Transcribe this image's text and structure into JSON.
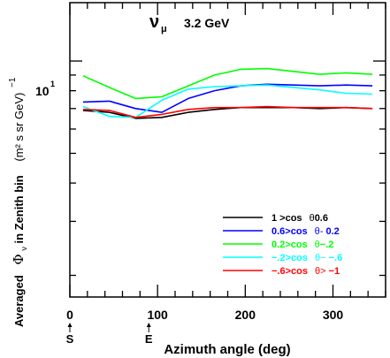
{
  "chart_data": {
    "type": "line",
    "title_symbol": "ν",
    "title_subscript": "μ",
    "title_energy": "3.2 GeV",
    "xlabel": "Azimuth angle (deg)",
    "ylabel_prefix": "Averaged",
    "ylabel_phi": "Φ",
    "ylabel_phi_sub": "ν",
    "ylabel_mid": "in Zenith bin",
    "ylabel_units": "(m² s sr GeV)",
    "ylabel_exp": "−1",
    "xlim": [
      0,
      360
    ],
    "ylim": [
      1.7,
      15.5
    ],
    "yscale": "log",
    "x_ticks": [
      0,
      100,
      200,
      300
    ],
    "y_label_tick": {
      "value": 10,
      "base": "10",
      "exp": "1"
    },
    "direction_markers": [
      {
        "x": 0,
        "label": "S"
      },
      {
        "x": 90,
        "label": "E"
      }
    ],
    "grid": false,
    "legend_placement": "bottom-right",
    "x": [
      15,
      45,
      75,
      105,
      135,
      165,
      195,
      225,
      255,
      285,
      315,
      345
    ],
    "series": [
      {
        "name": "1 >cos θ 0.6",
        "name_main": "1 >cos",
        "name_theta": "θ",
        "name_tail": "0.6",
        "color": "#000000",
        "values": [
          6.9,
          6.8,
          6.5,
          6.55,
          6.8,
          6.95,
          7.05,
          7.05,
          7.05,
          7.0,
          7.05,
          7.0
        ]
      },
      {
        "name": "0.6>cos θ- 0.2",
        "name_main": "0.6>cos",
        "name_theta": "θ-",
        "name_tail": " 0.2",
        "color": "#0000ff",
        "values": [
          7.35,
          7.4,
          7.0,
          6.8,
          7.55,
          8.0,
          8.3,
          8.4,
          8.35,
          8.3,
          8.35,
          8.3
        ]
      },
      {
        "name": "0.2>cos θ −.2",
        "name_main": "0.2>cos",
        "name_theta": "θ",
        "name_tail": "−.2",
        "color": "#00ff00",
        "values": [
          8.95,
          8.2,
          7.55,
          7.65,
          8.3,
          9.0,
          9.4,
          9.45,
          9.25,
          9.05,
          9.15,
          9.05
        ]
      },
      {
        "name": "−.2>cos θ− −.6",
        "name_main": "−.2>cos",
        "name_theta": "θ−",
        "name_tail": " −.6",
        "color": "#00ffff",
        "values": [
          7.1,
          6.6,
          6.55,
          7.45,
          8.1,
          8.25,
          8.3,
          8.35,
          8.2,
          8.05,
          7.85,
          7.8
        ]
      },
      {
        "name": "−.6>cos θ> −1",
        "name_main": "−.6>cos",
        "name_theta": "θ>",
        "name_tail": " −1",
        "color": "#ff0000",
        "values": [
          6.95,
          6.9,
          6.55,
          6.7,
          6.95,
          7.05,
          7.05,
          7.1,
          7.05,
          7.05,
          7.05,
          7.0
        ]
      }
    ]
  }
}
